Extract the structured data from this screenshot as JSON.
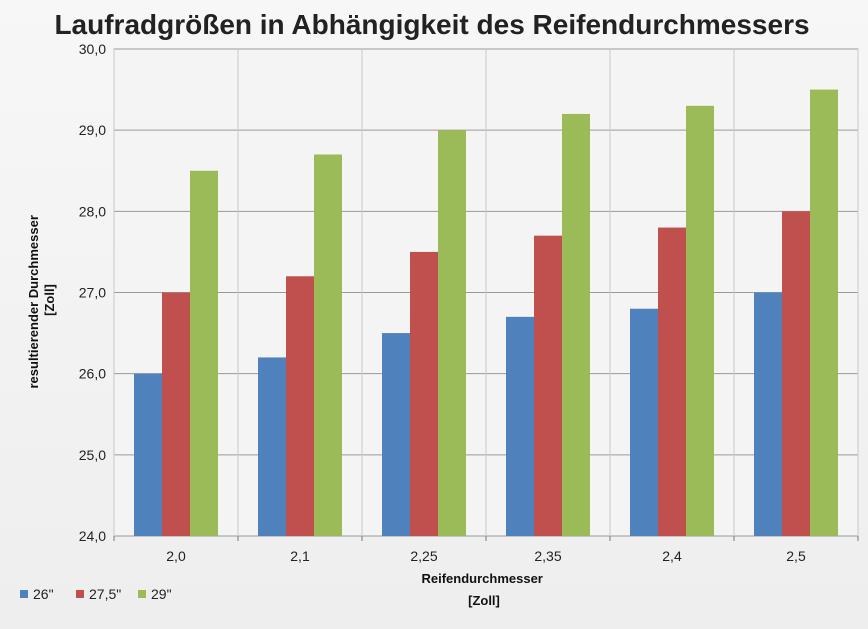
{
  "chart_data": {
    "type": "bar",
    "title": "Laufradgrößen in Abhängigkeit des Reifendurchmessers",
    "xlabel": [
      "Reifendurchmesser",
      "[Zoll]"
    ],
    "ylabel": [
      "resultierender Durchmesser",
      "[Zoll]"
    ],
    "categories": [
      "2,0",
      "2,1",
      "2,25",
      "2,35",
      "2,4",
      "2,5"
    ],
    "ylim": [
      24,
      30
    ],
    "yticks": [
      "24,0",
      "25,0",
      "26,0",
      "27,0",
      "28,0",
      "29,0",
      "30,0"
    ],
    "grid": true,
    "legend_position": "bottom-left",
    "series": [
      {
        "name": "26\"",
        "color": "#4f81bd",
        "values": [
          26.0,
          26.2,
          26.5,
          26.7,
          26.8,
          27.0
        ]
      },
      {
        "name": "27,5\"",
        "color": "#c0504d",
        "values": [
          27.0,
          27.2,
          27.5,
          27.7,
          27.8,
          28.0
        ]
      },
      {
        "name": "29\"",
        "color": "#9bbb59",
        "values": [
          28.5,
          28.7,
          29.0,
          29.2,
          29.3,
          29.5
        ]
      }
    ]
  }
}
